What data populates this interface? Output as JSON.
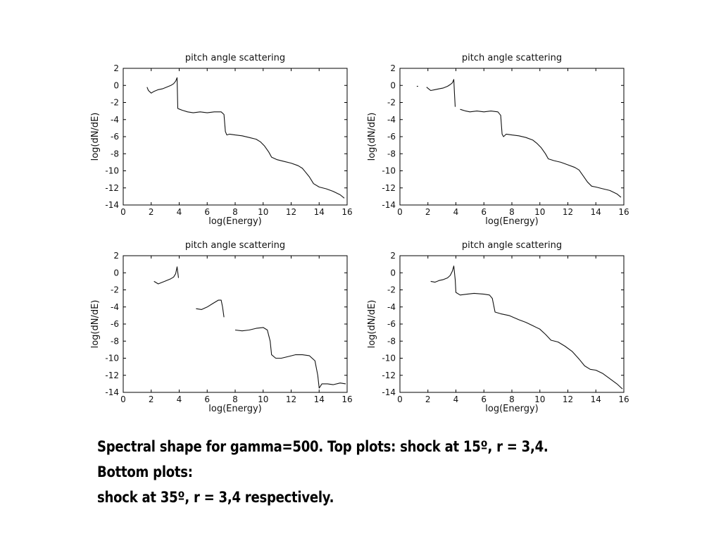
{
  "caption": {
    "line1": "Spectral shape for gamma=500. Top plots: shock at 15º, r = 3,4. Bottom plots:",
    "line2": "shock at 35º, r = 3,4 respectively."
  },
  "chart_data": [
    {
      "type": "line",
      "title": "pitch angle scattering",
      "xlabel": "log(Energy)",
      "ylabel": "log(dN/dE)",
      "xlim": [
        0,
        16
      ],
      "ylim": [
        -14,
        2
      ],
      "xticks": [
        0,
        2,
        4,
        6,
        8,
        10,
        12,
        14,
        16
      ],
      "yticks": [
        2,
        0,
        -2,
        -4,
        -6,
        -8,
        -10,
        -12,
        -14
      ],
      "grid": false,
      "series": [
        {
          "values": [
            [
              1.7,
              -0.2
            ],
            [
              1.8,
              -0.6
            ],
            [
              2.0,
              -0.9
            ],
            [
              2.2,
              -0.7
            ],
            [
              2.5,
              -0.5
            ],
            [
              2.8,
              -0.4
            ],
            [
              3.1,
              -0.2
            ],
            [
              3.4,
              0.0
            ],
            [
              3.6,
              0.2
            ],
            [
              3.75,
              0.5
            ],
            [
              3.85,
              0.9
            ],
            [
              3.9,
              -2.7
            ],
            [
              4.2,
              -2.9
            ],
            [
              4.6,
              -3.1
            ],
            [
              5.0,
              -3.2
            ],
            [
              5.5,
              -3.1
            ],
            [
              6.0,
              -3.2
            ],
            [
              6.5,
              -3.1
            ],
            [
              7.0,
              -3.1
            ],
            [
              7.2,
              -3.4
            ],
            [
              7.3,
              -5.4
            ],
            [
              7.4,
              -5.8
            ],
            [
              7.6,
              -5.7
            ],
            [
              8.0,
              -5.8
            ],
            [
              8.5,
              -5.9
            ],
            [
              9.0,
              -6.1
            ],
            [
              9.5,
              -6.3
            ],
            [
              9.8,
              -6.6
            ],
            [
              10.1,
              -7.1
            ],
            [
              10.4,
              -7.8
            ],
            [
              10.6,
              -8.4
            ],
            [
              11.0,
              -8.7
            ],
            [
              11.5,
              -8.9
            ],
            [
              12.0,
              -9.1
            ],
            [
              12.5,
              -9.4
            ],
            [
              12.8,
              -9.7
            ],
            [
              13.0,
              -10.1
            ],
            [
              13.3,
              -10.7
            ],
            [
              13.6,
              -11.5
            ],
            [
              14.0,
              -11.9
            ],
            [
              14.5,
              -12.1
            ],
            [
              15.0,
              -12.4
            ],
            [
              15.5,
              -12.8
            ],
            [
              15.8,
              -13.2
            ]
          ]
        }
      ]
    },
    {
      "type": "line",
      "title": "pitch angle scattering",
      "xlabel": "log(Energy)",
      "ylabel": "log(dN/dE)",
      "xlim": [
        0,
        16
      ],
      "ylim": [
        -14,
        2
      ],
      "xticks": [
        0,
        2,
        4,
        6,
        8,
        10,
        12,
        14,
        16
      ],
      "yticks": [
        2,
        0,
        -2,
        -4,
        -6,
        -8,
        -10,
        -12,
        -14
      ],
      "grid": false,
      "series": [
        {
          "values": [
            [
              1.2,
              -0.1
            ],
            [
              1.3,
              -0.1
            ]
          ]
        },
        {
          "values": [
            [
              1.9,
              -0.2
            ],
            [
              2.2,
              -0.6
            ],
            [
              2.5,
              -0.5
            ],
            [
              2.8,
              -0.4
            ],
            [
              3.1,
              -0.3
            ],
            [
              3.4,
              -0.1
            ],
            [
              3.6,
              0.1
            ],
            [
              3.75,
              0.3
            ],
            [
              3.85,
              0.7
            ],
            [
              3.9,
              -1.0
            ],
            [
              3.95,
              -2.5
            ]
          ]
        },
        {
          "values": [
            [
              4.3,
              -2.8
            ],
            [
              4.7,
              -3.0
            ],
            [
              5.0,
              -3.1
            ],
            [
              5.5,
              -3.0
            ],
            [
              6.0,
              -3.1
            ],
            [
              6.5,
              -3.0
            ],
            [
              7.0,
              -3.1
            ],
            [
              7.2,
              -3.5
            ],
            [
              7.3,
              -5.7
            ],
            [
              7.4,
              -6.0
            ],
            [
              7.6,
              -5.7
            ],
            [
              8.0,
              -5.8
            ],
            [
              8.5,
              -5.9
            ],
            [
              9.0,
              -6.1
            ],
            [
              9.5,
              -6.4
            ],
            [
              9.8,
              -6.8
            ],
            [
              10.1,
              -7.3
            ],
            [
              10.4,
              -8.0
            ],
            [
              10.6,
              -8.6
            ],
            [
              11.0,
              -8.8
            ],
            [
              11.5,
              -9.0
            ],
            [
              12.0,
              -9.3
            ],
            [
              12.5,
              -9.6
            ],
            [
              12.8,
              -9.9
            ],
            [
              13.1,
              -10.6
            ],
            [
              13.4,
              -11.3
            ],
            [
              13.7,
              -11.8
            ],
            [
              14.0,
              -11.9
            ],
            [
              14.5,
              -12.1
            ],
            [
              15.0,
              -12.3
            ],
            [
              15.5,
              -12.7
            ],
            [
              15.8,
              -13.1
            ]
          ]
        }
      ]
    },
    {
      "type": "line",
      "title": "pitch angle scattering",
      "xlabel": "log(Energy)",
      "ylabel": "log(dN/dE)",
      "xlim": [
        0,
        16
      ],
      "ylim": [
        -14,
        2
      ],
      "xticks": [
        0,
        2,
        4,
        6,
        8,
        10,
        12,
        14,
        16
      ],
      "yticks": [
        2,
        0,
        -2,
        -4,
        -6,
        -8,
        -10,
        -12,
        -14
      ],
      "grid": false,
      "series": [
        {
          "values": [
            [
              2.2,
              -1.0
            ],
            [
              2.5,
              -1.3
            ],
            [
              2.8,
              -1.1
            ],
            [
              3.1,
              -0.9
            ],
            [
              3.4,
              -0.7
            ],
            [
              3.6,
              -0.5
            ],
            [
              3.75,
              -0.1
            ],
            [
              3.85,
              0.7
            ],
            [
              3.95,
              -0.6
            ]
          ]
        },
        {
          "values": [
            [
              5.2,
              -4.2
            ],
            [
              5.6,
              -4.3
            ],
            [
              6.0,
              -4.0
            ],
            [
              6.4,
              -3.6
            ],
            [
              6.8,
              -3.2
            ],
            [
              7.0,
              -3.2
            ],
            [
              7.1,
              -4.0
            ],
            [
              7.2,
              -5.2
            ]
          ]
        },
        {
          "values": [
            [
              8.0,
              -6.7
            ],
            [
              8.5,
              -6.8
            ],
            [
              9.0,
              -6.7
            ],
            [
              9.5,
              -6.5
            ],
            [
              10.0,
              -6.4
            ],
            [
              10.3,
              -6.7
            ],
            [
              10.5,
              -8.0
            ],
            [
              10.6,
              -9.6
            ],
            [
              10.9,
              -10.0
            ],
            [
              11.3,
              -10.0
            ],
            [
              11.8,
              -9.8
            ],
            [
              12.3,
              -9.6
            ],
            [
              12.8,
              -9.6
            ],
            [
              13.3,
              -9.7
            ],
            [
              13.7,
              -10.3
            ],
            [
              13.9,
              -12.0
            ],
            [
              14.0,
              -13.5
            ],
            [
              14.2,
              -13.0
            ],
            [
              14.6,
              -13.0
            ],
            [
              15.0,
              -13.1
            ],
            [
              15.5,
              -12.9
            ],
            [
              15.9,
              -13.0
            ]
          ]
        }
      ]
    },
    {
      "type": "line",
      "title": "pitch angle scattering",
      "xlabel": "log(Energy)",
      "ylabel": "log(dN/dE)",
      "xlim": [
        0,
        16
      ],
      "ylim": [
        -14,
        2
      ],
      "xticks": [
        0,
        2,
        4,
        6,
        8,
        10,
        12,
        14,
        16
      ],
      "yticks": [
        2,
        0,
        -2,
        -4,
        -6,
        -8,
        -10,
        -12,
        -14
      ],
      "grid": false,
      "series": [
        {
          "values": [
            [
              2.2,
              -1.0
            ],
            [
              2.5,
              -1.1
            ],
            [
              2.8,
              -0.9
            ],
            [
              3.1,
              -0.8
            ],
            [
              3.4,
              -0.6
            ],
            [
              3.6,
              -0.3
            ],
            [
              3.75,
              0.2
            ],
            [
              3.85,
              0.8
            ],
            [
              3.95,
              -0.8
            ],
            [
              4.0,
              -2.3
            ],
            [
              4.3,
              -2.6
            ],
            [
              4.8,
              -2.5
            ],
            [
              5.3,
              -2.4
            ],
            [
              6.0,
              -2.5
            ],
            [
              6.4,
              -2.6
            ],
            [
              6.6,
              -3.0
            ],
            [
              6.8,
              -4.6
            ],
            [
              7.2,
              -4.8
            ],
            [
              7.8,
              -5.0
            ],
            [
              8.5,
              -5.5
            ],
            [
              9.0,
              -5.8
            ],
            [
              9.5,
              -6.2
            ],
            [
              10.0,
              -6.6
            ],
            [
              10.4,
              -7.2
            ],
            [
              10.8,
              -7.9
            ],
            [
              11.3,
              -8.1
            ],
            [
              11.8,
              -8.6
            ],
            [
              12.3,
              -9.2
            ],
            [
              12.8,
              -10.1
            ],
            [
              13.2,
              -10.9
            ],
            [
              13.6,
              -11.3
            ],
            [
              14.0,
              -11.4
            ],
            [
              14.5,
              -11.8
            ],
            [
              15.0,
              -12.4
            ],
            [
              15.5,
              -13.0
            ],
            [
              15.9,
              -13.6
            ]
          ]
        }
      ]
    }
  ]
}
